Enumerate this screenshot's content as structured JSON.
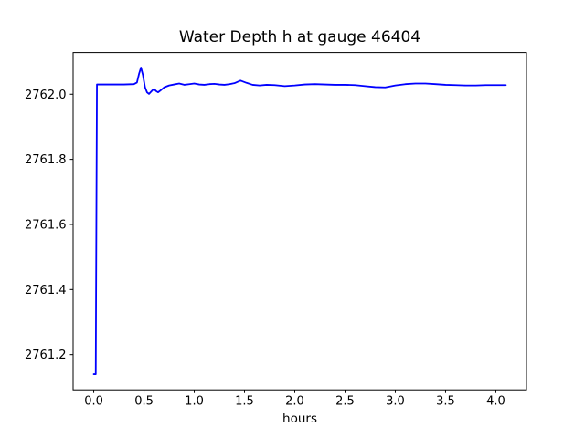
{
  "chart_data": {
    "type": "line",
    "title": "Water Depth h at gauge 46404",
    "xlabel": "hours",
    "ylabel": "",
    "grid": false,
    "legend_position": "none",
    "background_color": "#ffffff",
    "axis_color": "#000000",
    "xlim": [
      -0.205,
      4.305
    ],
    "ylim": [
      2761.092,
      2762.128
    ],
    "xticks": {
      "values": [
        0.0,
        0.5,
        1.0,
        1.5,
        2.0,
        2.5,
        3.0,
        3.5,
        4.0
      ],
      "labels": [
        "0.0",
        "0.5",
        "1.0",
        "1.5",
        "2.0",
        "2.5",
        "3.0",
        "3.5",
        "4.0"
      ]
    },
    "yticks": {
      "values": [
        2761.2,
        2761.4,
        2761.6,
        2761.8,
        2762.0
      ],
      "labels": [
        "2761.2",
        "2761.4",
        "2761.6",
        "2761.8",
        "2762.0"
      ]
    },
    "series": [
      {
        "name": "water-depth-h",
        "color": "#0000ff",
        "points": [
          [
            0.0,
            2761.14
          ],
          [
            0.02,
            2761.14
          ],
          [
            0.032,
            2762.03
          ],
          [
            0.1,
            2762.03
          ],
          [
            0.2,
            2762.03
          ],
          [
            0.3,
            2762.03
          ],
          [
            0.4,
            2762.031
          ],
          [
            0.43,
            2762.036
          ],
          [
            0.45,
            2762.062
          ],
          [
            0.47,
            2762.082
          ],
          [
            0.49,
            2762.058
          ],
          [
            0.51,
            2762.022
          ],
          [
            0.53,
            2762.006
          ],
          [
            0.55,
            2762.001
          ],
          [
            0.58,
            2762.011
          ],
          [
            0.6,
            2762.016
          ],
          [
            0.62,
            2762.01
          ],
          [
            0.64,
            2762.006
          ],
          [
            0.67,
            2762.013
          ],
          [
            0.7,
            2762.021
          ],
          [
            0.75,
            2762.027
          ],
          [
            0.8,
            2762.03
          ],
          [
            0.85,
            2762.033
          ],
          [
            0.9,
            2762.029
          ],
          [
            0.95,
            2762.031
          ],
          [
            1.0,
            2762.033
          ],
          [
            1.05,
            2762.03
          ],
          [
            1.1,
            2762.029
          ],
          [
            1.15,
            2762.031
          ],
          [
            1.2,
            2762.032
          ],
          [
            1.25,
            2762.03
          ],
          [
            1.3,
            2762.029
          ],
          [
            1.35,
            2762.031
          ],
          [
            1.4,
            2762.034
          ],
          [
            1.46,
            2762.042
          ],
          [
            1.52,
            2762.035
          ],
          [
            1.58,
            2762.029
          ],
          [
            1.65,
            2762.027
          ],
          [
            1.72,
            2762.029
          ],
          [
            1.8,
            2762.028
          ],
          [
            1.9,
            2762.025
          ],
          [
            2.0,
            2762.027
          ],
          [
            2.1,
            2762.03
          ],
          [
            2.2,
            2762.031
          ],
          [
            2.3,
            2762.03
          ],
          [
            2.4,
            2762.029
          ],
          [
            2.5,
            2762.029
          ],
          [
            2.6,
            2762.028
          ],
          [
            2.7,
            2762.025
          ],
          [
            2.8,
            2762.022
          ],
          [
            2.9,
            2762.021
          ],
          [
            3.0,
            2762.027
          ],
          [
            3.1,
            2762.031
          ],
          [
            3.2,
            2762.033
          ],
          [
            3.3,
            2762.033
          ],
          [
            3.4,
            2762.031
          ],
          [
            3.5,
            2762.029
          ],
          [
            3.6,
            2762.028
          ],
          [
            3.7,
            2762.027
          ],
          [
            3.8,
            2762.027
          ],
          [
            3.9,
            2762.028
          ],
          [
            4.0,
            2762.028
          ],
          [
            4.1,
            2762.028
          ]
        ]
      }
    ]
  }
}
